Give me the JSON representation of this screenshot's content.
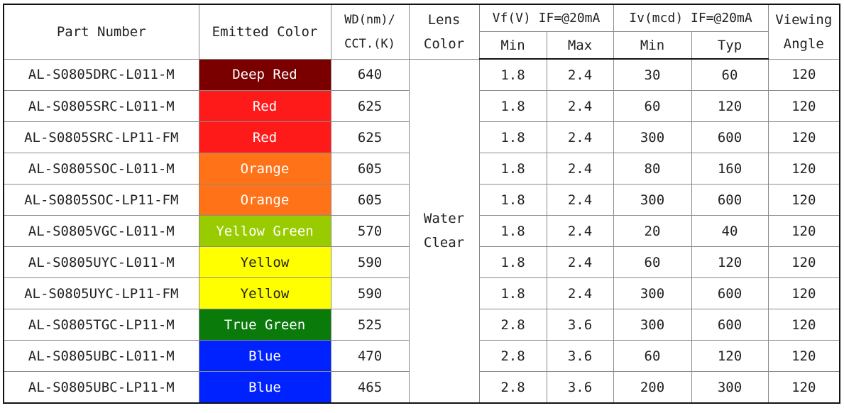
{
  "header": {
    "part_number": "Part Number",
    "emitted_color": "Emitted Color",
    "wd_line1": "WD(nm)/",
    "wd_line2": "CCT.(K)",
    "lens_line1": "Lens",
    "lens_line2": "Color",
    "vf": "Vf(V)  IF=@20mA",
    "iv": "Iv(mcd)  IF=@20mA",
    "view_line1": "Viewing",
    "view_line2": "Angle",
    "min": "Min",
    "max": "Max",
    "typ": "Typ"
  },
  "lens_color": {
    "line1": "Water",
    "line2": "Clear"
  },
  "colors": {
    "Deep Red": "#7a0000",
    "Red": "#ff1a1a",
    "Orange": "#ff7218",
    "Yellow Green": "#99cc00",
    "Yellow": "#ffff00",
    "True Green": "#0a7a0a",
    "Blue": "#0022ff"
  },
  "rows": [
    {
      "part": "AL-S0805DRC-L011-M",
      "color": "Deep Red",
      "wd": "640",
      "vf_min": "1.8",
      "vf_max": "2.4",
      "iv_min": "30",
      "iv_typ": "60",
      "angle": "120"
    },
    {
      "part": "AL-S0805SRC-L011-M",
      "color": "Red",
      "wd": "625",
      "vf_min": "1.8",
      "vf_max": "2.4",
      "iv_min": "60",
      "iv_typ": "120",
      "angle": "120"
    },
    {
      "part": "AL-S0805SRC-LP11-FM",
      "color": "Red",
      "wd": "625",
      "vf_min": "1.8",
      "vf_max": "2.4",
      "iv_min": "300",
      "iv_typ": "600",
      "angle": "120"
    },
    {
      "part": "AL-S0805SOC-L011-M",
      "color": "Orange",
      "wd": "605",
      "vf_min": "1.8",
      "vf_max": "2.4",
      "iv_min": "80",
      "iv_typ": "160",
      "angle": "120"
    },
    {
      "part": "AL-S0805SOC-LP11-FM",
      "color": "Orange",
      "wd": "605",
      "vf_min": "1.8",
      "vf_max": "2.4",
      "iv_min": "300",
      "iv_typ": "600",
      "angle": "120"
    },
    {
      "part": "AL-S0805VGC-L011-M",
      "color": "Yellow Green",
      "wd": "570",
      "vf_min": "1.8",
      "vf_max": "2.4",
      "iv_min": "20",
      "iv_typ": "40",
      "angle": "120"
    },
    {
      "part": "AL-S0805UYC-L011-M",
      "color": "Yellow",
      "wd": "590",
      "vf_min": "1.8",
      "vf_max": "2.4",
      "iv_min": "60",
      "iv_typ": "120",
      "angle": "120"
    },
    {
      "part": "AL-S0805UYC-LP11-FM",
      "color": "Yellow",
      "wd": "590",
      "vf_min": "1.8",
      "vf_max": "2.4",
      "iv_min": "300",
      "iv_typ": "600",
      "angle": "120"
    },
    {
      "part": "AL-S0805TGC-LP11-M",
      "color": "True Green",
      "wd": "525",
      "vf_min": "2.8",
      "vf_max": "3.6",
      "iv_min": "300",
      "iv_typ": "600",
      "angle": "120"
    },
    {
      "part": "AL-S0805UBC-L011-M",
      "color": "Blue",
      "wd": "470",
      "vf_min": "2.8",
      "vf_max": "3.6",
      "iv_min": "60",
      "iv_typ": "120",
      "angle": "120"
    },
    {
      "part": "AL-S0805UBC-LP11-M",
      "color": "Blue",
      "wd": "465",
      "vf_min": "2.8",
      "vf_max": "3.6",
      "iv_min": "200",
      "iv_typ": "300",
      "angle": "120"
    }
  ]
}
